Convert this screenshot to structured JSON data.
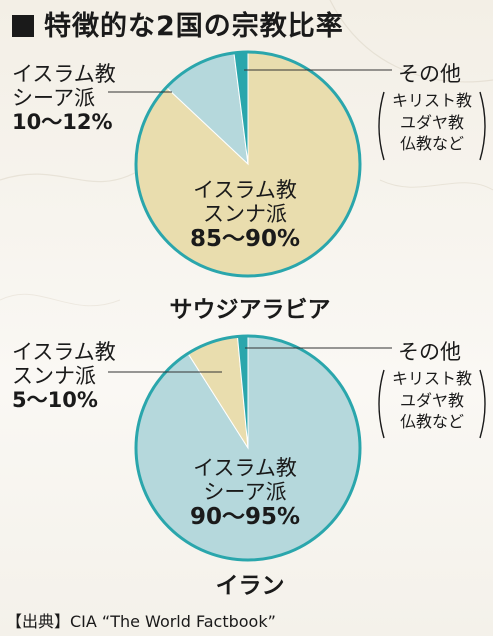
{
  "title": "特徴的な2国の宗教比率",
  "colors": {
    "sunni": "#e9ddae",
    "shia": "#b5d8dc",
    "other": "#2aa6ac",
    "stroke": "#2aa6ac"
  },
  "chart_data": [
    {
      "type": "pie",
      "country": "サウジアラビア",
      "slices": [
        {
          "name": "イスラム教スンナ派",
          "label_line1": "イスラム教",
          "label_line2": "スンナ派",
          "value_text": "85〜90%",
          "value": 87
        },
        {
          "name": "イスラム教シーア派",
          "label_line1": "イスラム教",
          "label_line2": "シーア派",
          "value_text": "10〜12%",
          "value": 11
        },
        {
          "name": "その他",
          "label": "その他",
          "value": 2
        }
      ],
      "other_detail": [
        "キリスト教",
        "ユダヤ教",
        "仏教など"
      ]
    },
    {
      "type": "pie",
      "country": "イラン",
      "slices": [
        {
          "name": "イスラム教シーア派",
          "label_line1": "イスラム教",
          "label_line2": "シーア派",
          "value_text": "90〜95%",
          "value": 91
        },
        {
          "name": "イスラム教スンナ派",
          "label_line1": "イスラム教",
          "label_line2": "スンナ派",
          "value_text": "5〜10%",
          "value": 7.5
        },
        {
          "name": "その他",
          "label": "その他",
          "value": 1.5
        }
      ],
      "other_detail": [
        "キリスト教",
        "ユダヤ教",
        "仏教など"
      ]
    }
  ],
  "source": "【出典】CIA “The World Factbook”"
}
